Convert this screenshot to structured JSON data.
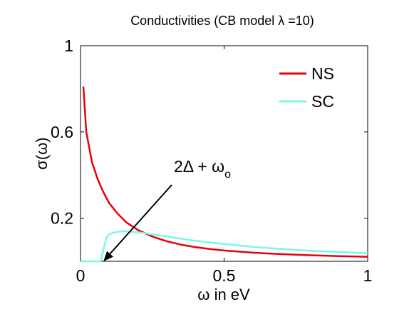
{
  "chart_data": {
    "type": "line",
    "title": "Conductivities (CB model λ =10)",
    "xlabel": "ω in eV",
    "ylabel": "σ(ω)",
    "xlim": [
      0,
      1
    ],
    "ylim": [
      0.0,
      1.0
    ],
    "xticks": [
      "0",
      "0.5",
      "1"
    ],
    "yticks": [
      "1",
      "0.6",
      "0.2"
    ],
    "ytick_values": [
      1.0,
      0.6,
      0.2
    ],
    "xtick_values": [
      0,
      0.5,
      1
    ],
    "grid": false,
    "legend_position": "top-right",
    "series": [
      {
        "name": "NS",
        "color": "#e8000b",
        "x": [
          0.01,
          0.02,
          0.04,
          0.06,
          0.08,
          0.1,
          0.13,
          0.16,
          0.2,
          0.25,
          0.3,
          0.35,
          0.4,
          0.45,
          0.5,
          0.6,
          0.7,
          0.8,
          0.9,
          1.0
        ],
        "y": [
          0.81,
          0.6,
          0.46,
          0.38,
          0.32,
          0.27,
          0.22,
          0.18,
          0.145,
          0.115,
          0.093,
          0.077,
          0.066,
          0.057,
          0.05,
          0.04,
          0.033,
          0.028,
          0.024,
          0.021
        ]
      },
      {
        "name": "SC",
        "color": "#7ff5e2",
        "x": [
          0.0,
          0.07,
          0.09,
          0.1,
          0.12,
          0.15,
          0.2,
          0.25,
          0.3,
          0.4,
          0.5,
          0.6,
          0.7,
          0.8,
          0.9,
          1.0
        ],
        "y": [
          0.0,
          0.0,
          0.11,
          0.125,
          0.135,
          0.14,
          0.135,
          0.125,
          0.115,
          0.095,
          0.08,
          0.067,
          0.057,
          0.049,
          0.043,
          0.037
        ]
      }
    ],
    "annotation": {
      "text_main": "2Δ + ω",
      "text_sub": "o",
      "arrow_to_x": 0.08,
      "arrow_to_y": 0.0
    }
  }
}
